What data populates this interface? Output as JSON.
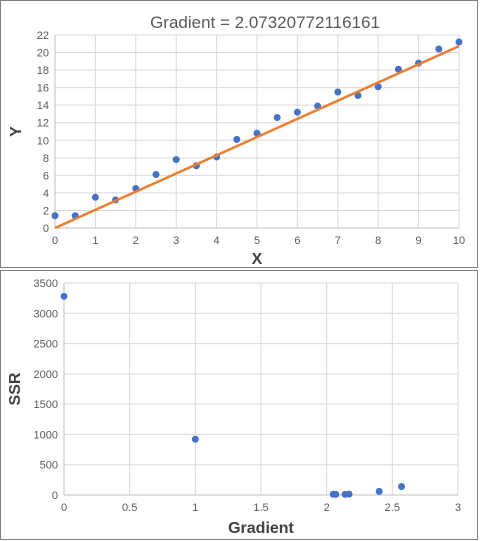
{
  "chart_data": [
    {
      "type": "scatter",
      "title": "Gradient = 2.07320772116161",
      "xlabel": "X",
      "ylabel": "Y",
      "xlim": [
        0,
        10
      ],
      "ylim": [
        0,
        22
      ],
      "x_ticks": [
        "0",
        "1",
        "2",
        "3",
        "4",
        "5",
        "6",
        "7",
        "8",
        "9",
        "10"
      ],
      "y_ticks": [
        "0",
        "2",
        "4",
        "6",
        "8",
        "10",
        "12",
        "14",
        "16",
        "18",
        "20",
        "22"
      ],
      "grid": true,
      "colors": {
        "points": "#4472c4",
        "line": "#ed7d31"
      },
      "series": [
        {
          "kind": "scatter",
          "x": [
            0,
            0.5,
            1,
            1.5,
            2,
            2.5,
            3,
            3.5,
            4,
            4.5,
            5,
            5.5,
            6,
            6.5,
            7,
            7.5,
            8,
            8.5,
            9,
            9.5,
            10
          ],
          "y": [
            1.4,
            1.4,
            3.5,
            3.2,
            4.5,
            6.1,
            7.8,
            7.1,
            8.1,
            10.1,
            10.8,
            12.6,
            13.2,
            13.9,
            15.5,
            15.1,
            16.1,
            18.1,
            18.8,
            20.4,
            21.2
          ]
        },
        {
          "kind": "line",
          "x": [
            0,
            10
          ],
          "y": [
            0,
            20.73
          ]
        }
      ]
    },
    {
      "type": "scatter",
      "title": "",
      "xlabel": "Gradient",
      "ylabel": "SSR",
      "xlim": [
        0,
        3
      ],
      "ylim": [
        0,
        3500
      ],
      "x_ticks": [
        "0",
        "0.5",
        "1",
        "1.5",
        "2",
        "2.5",
        "3"
      ],
      "y_ticks": [
        "0",
        "500",
        "1000",
        "1500",
        "2000",
        "2500",
        "3000",
        "3500"
      ],
      "grid": true,
      "colors": {
        "points": "#4472c4"
      },
      "series": [
        {
          "kind": "scatter",
          "x": [
            0,
            1,
            2.05,
            2.07,
            2.14,
            2.17,
            2.4,
            2.57
          ],
          "y": [
            3280,
            920,
            12,
            10,
            11,
            14,
            60,
            140
          ]
        }
      ]
    }
  ]
}
